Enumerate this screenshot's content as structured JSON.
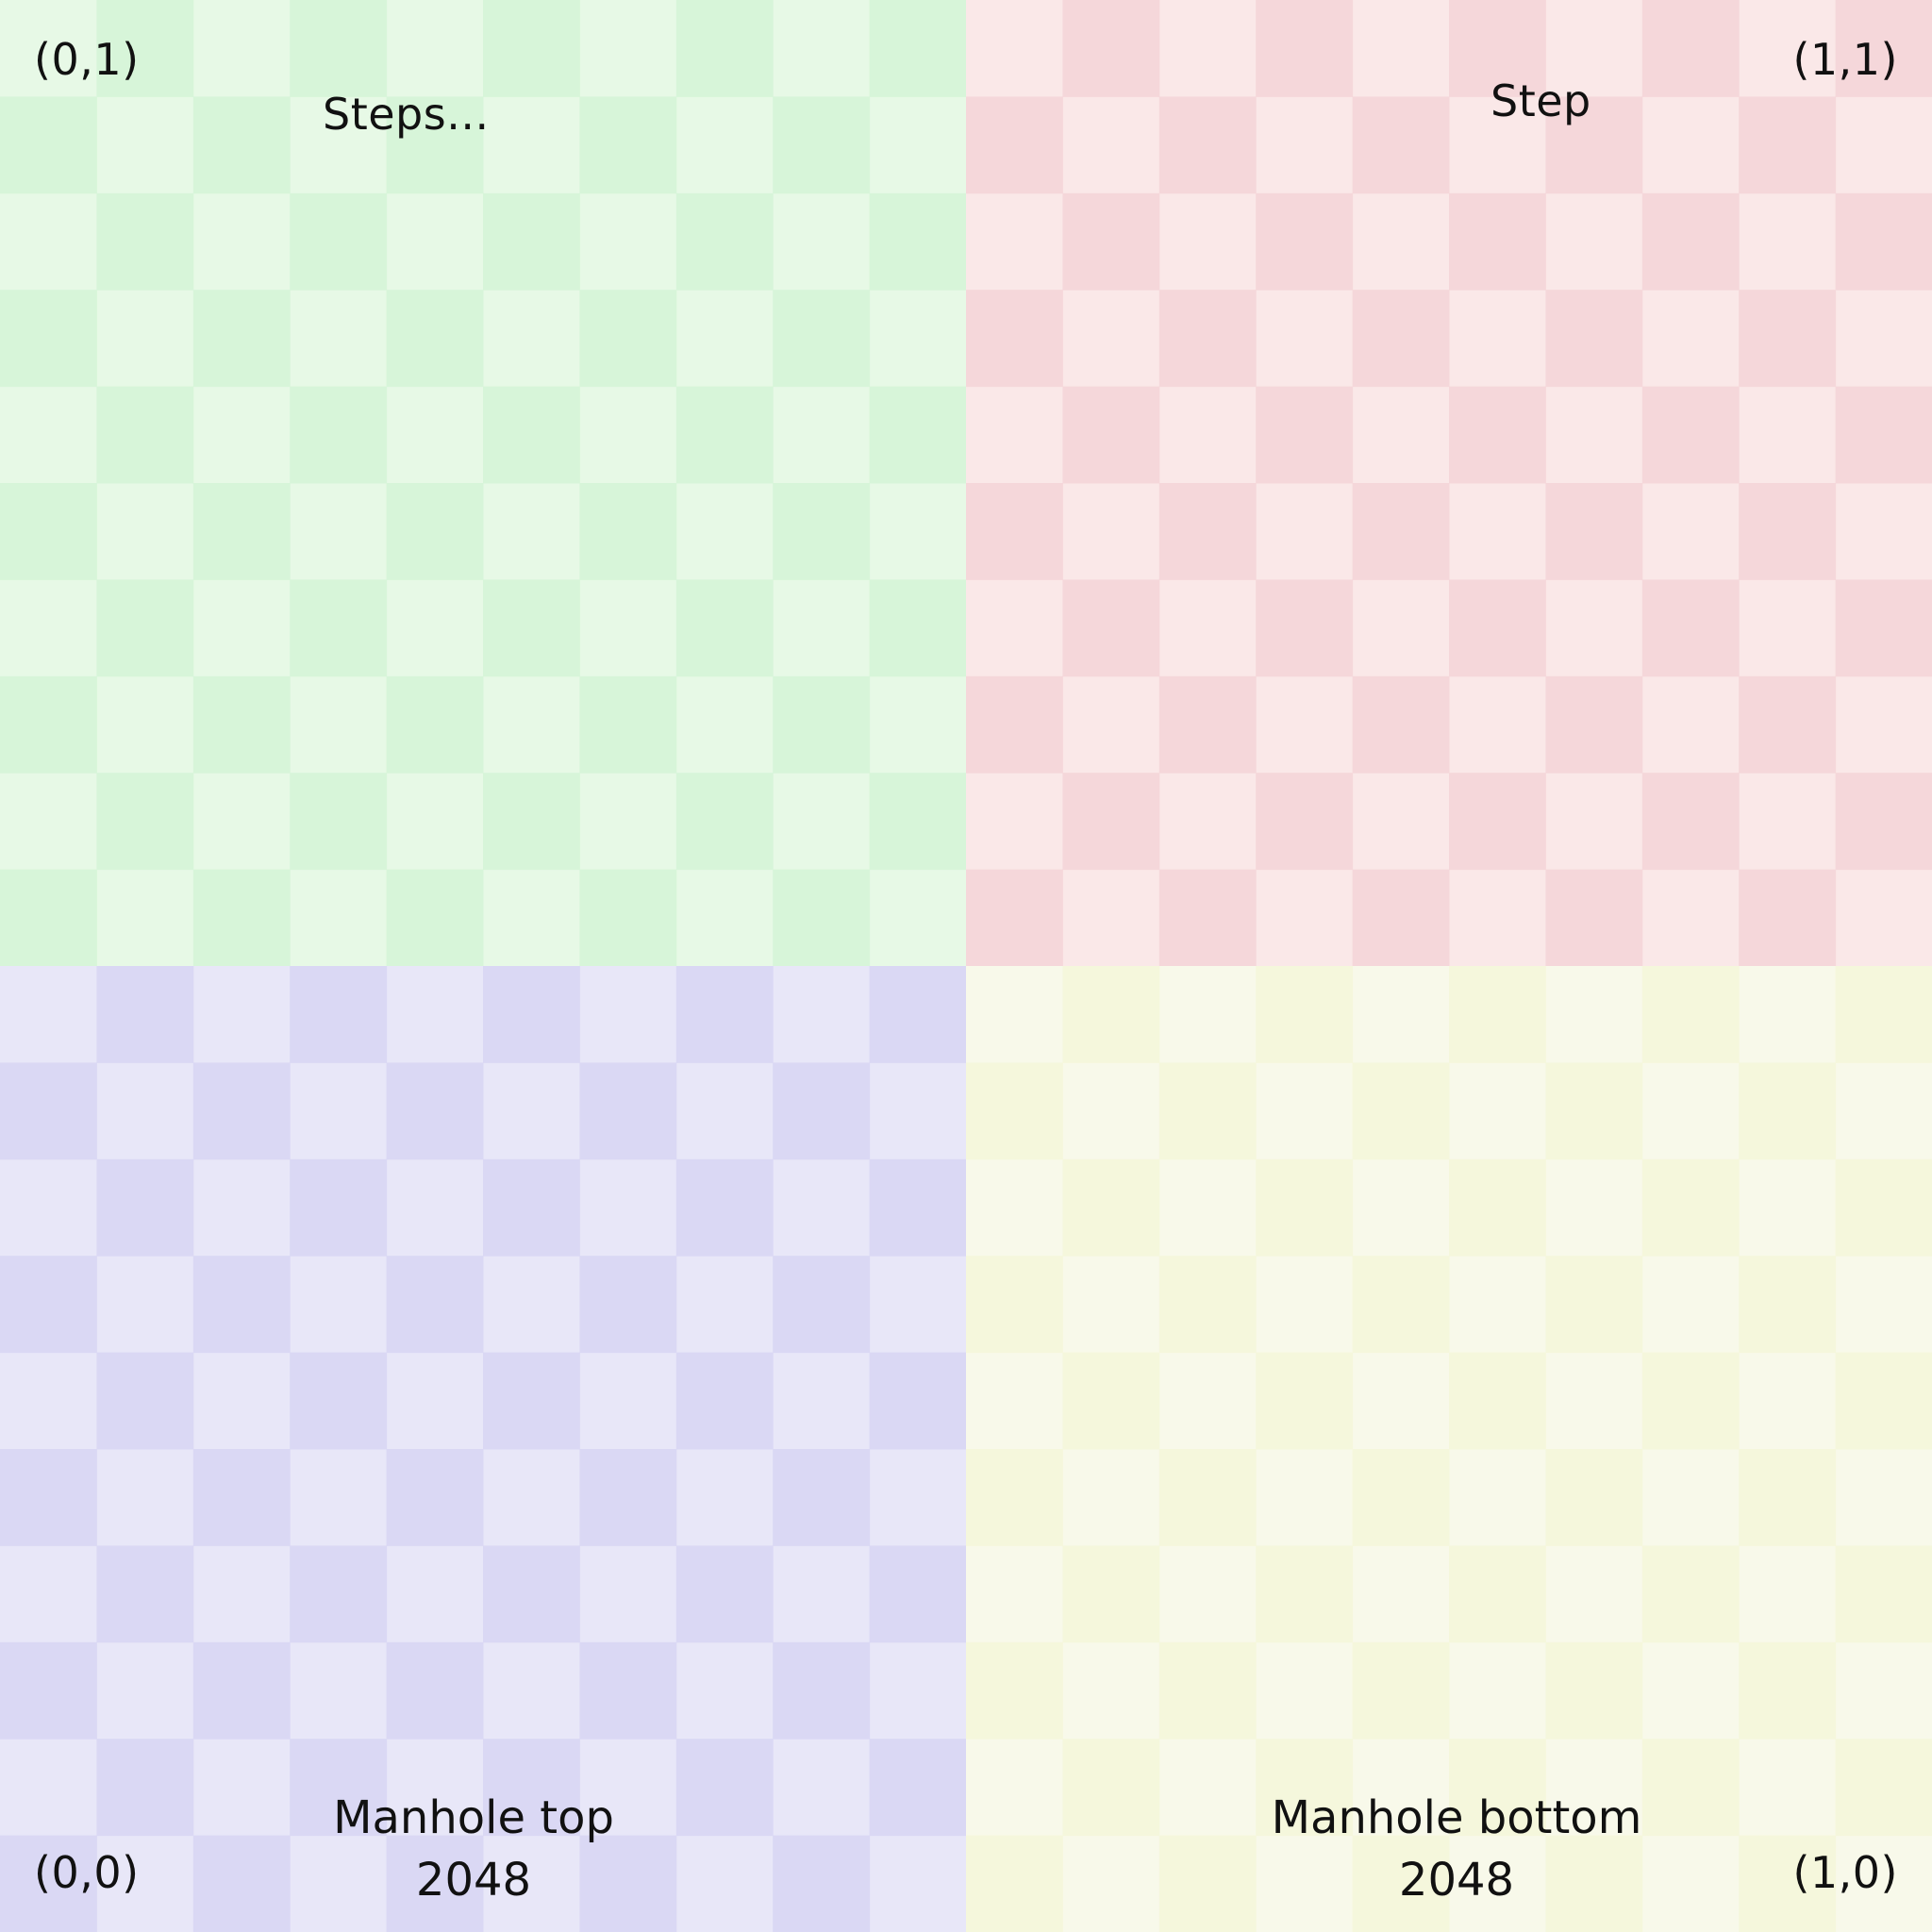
{
  "quadrants": {
    "top_left": {
      "corner_label": "(0,1)",
      "caption": "Steps...",
      "colors": {
        "light": "#e7f9e6",
        "dark": "#d7f5d9"
      }
    },
    "top_right": {
      "corner_label": "(1,1)",
      "caption": "Step",
      "colors": {
        "light": "#fae8e8",
        "dark": "#f5d7da"
      }
    },
    "bottom_left": {
      "corner_label": "(0,0)",
      "caption_line1": "Manhole top",
      "caption_line2": "2048",
      "colors": {
        "light": "#e8e7f8",
        "dark": "#dad8f4"
      }
    },
    "bottom_right": {
      "corner_label": "(1,0)",
      "caption_line1": "Manhole bottom",
      "caption_line2": "2048",
      "colors": {
        "light": "#f8f9ea",
        "dark": "#f5f7dc"
      }
    }
  }
}
